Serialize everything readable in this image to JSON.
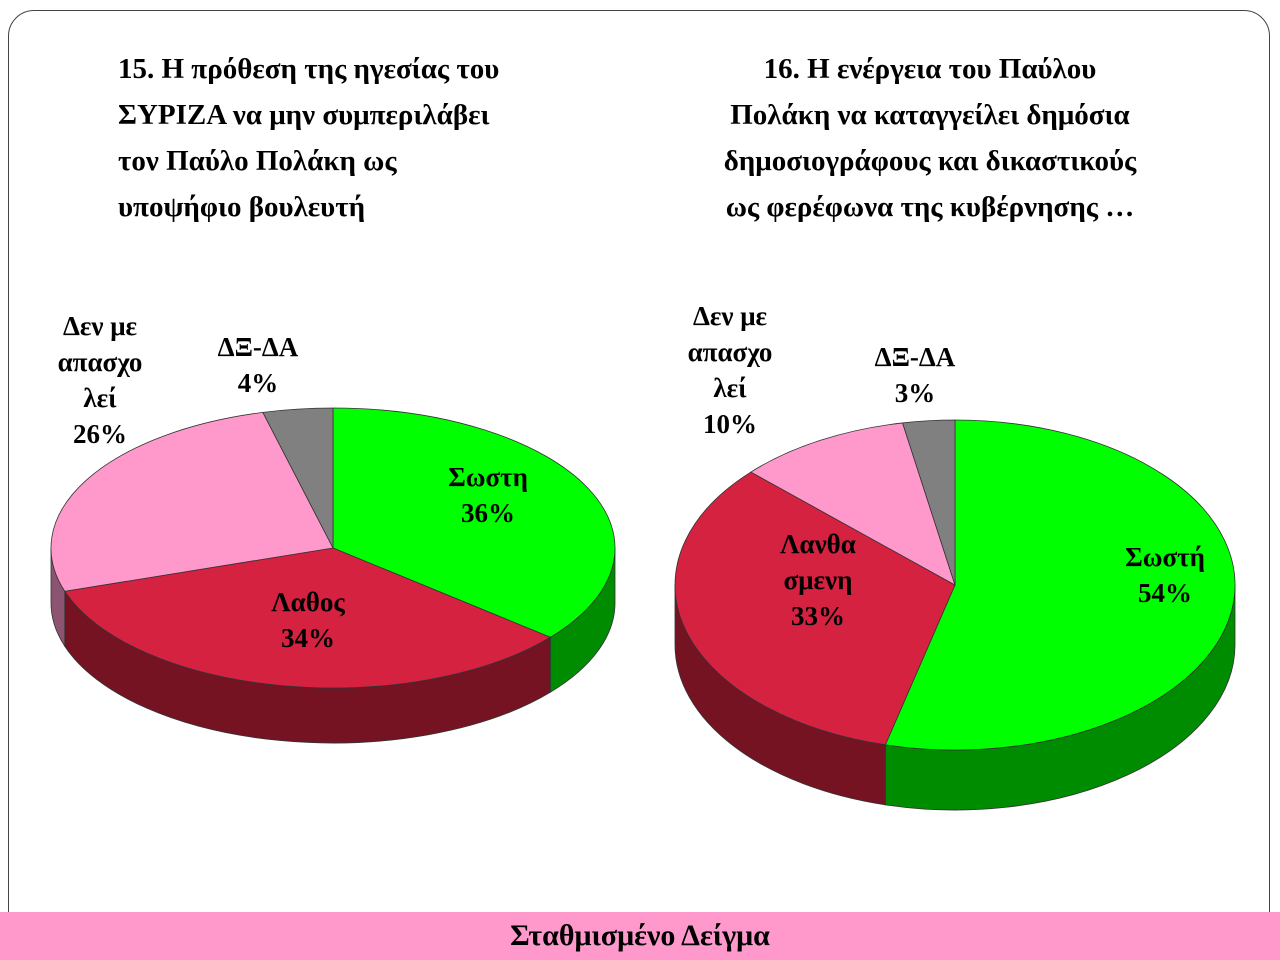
{
  "chart_data": [
    {
      "type": "pie",
      "title": "15. Η πρόθεση της ηγεσίας του\nΣΥΡΙΖΑ να μην συμπεριλάβει\nτον  Παύλο  Πολάκη ως\nυποψήφιο βουλευτή",
      "categories": [
        "Σωστη",
        "Λαθος",
        "Δεν με\nαπασχο\nλεί",
        "ΔΞ-ΔΑ"
      ],
      "values": [
        36,
        34,
        26,
        4
      ],
      "value_labels": [
        "36%",
        "34%",
        "26%",
        "4%"
      ],
      "colors": [
        "#00ff00",
        "#d42240",
        "#ff99cc",
        "#808080"
      ]
    },
    {
      "type": "pie",
      "title": "16. Η ενέργεια του  Παύλου\nΠολάκη να καταγγείλει δημόσια\nδημοσιογράφους και δικαστικούς\nως φερέφωνα της κυβέρνησης  …",
      "categories": [
        "Σωστή",
        "Λανθα\nσμενη",
        "Δεν με\nαπασχο\nλεί",
        "ΔΞ-ΔΑ"
      ],
      "values": [
        54,
        33,
        10,
        3
      ],
      "value_labels": [
        "54%",
        "33%",
        "10%",
        "3%"
      ],
      "colors": [
        "#00ff00",
        "#d42240",
        "#ff99cc",
        "#808080"
      ]
    }
  ],
  "footer": "Σταθμισμένο Δείγμα"
}
